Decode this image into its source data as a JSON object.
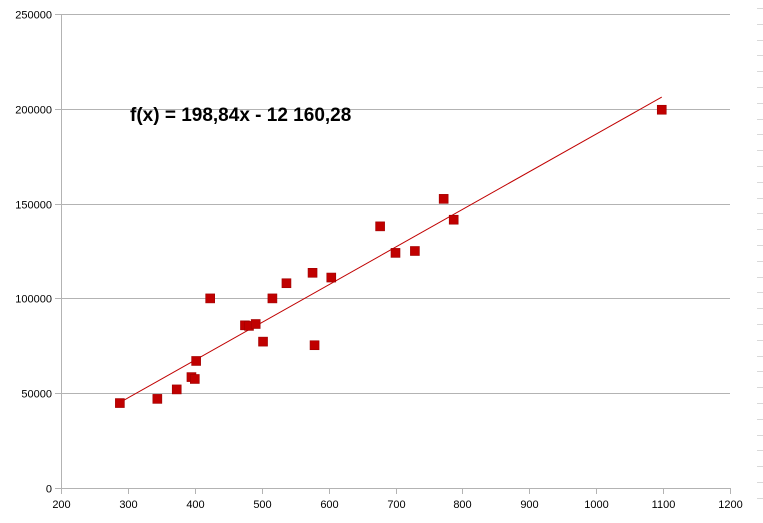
{
  "chart_data": {
    "type": "scatter",
    "title": "",
    "xlabel": "",
    "ylabel": "",
    "xlim": [
      200,
      1200
    ],
    "ylim": [
      0,
      250000
    ],
    "x_ticks": [
      "200",
      "300",
      "400",
      "500",
      "600",
      "700",
      "800",
      "900",
      "1000",
      "1100",
      "1200"
    ],
    "y_ticks": [
      "0",
      "50000",
      "100000",
      "150000",
      "200000",
      "250000"
    ],
    "grid": "horizontal",
    "legend": "none",
    "marker": "square",
    "colors": {
      "points": "#c00000",
      "trendline": "#c00000",
      "grid": "#b3b3b3",
      "axis": "#b3b3b3"
    },
    "points": [
      {
        "x": 288,
        "y": 44800
      },
      {
        "x": 344,
        "y": 47000
      },
      {
        "x": 373,
        "y": 52000
      },
      {
        "x": 395,
        "y": 58500
      },
      {
        "x": 400,
        "y": 57500
      },
      {
        "x": 402,
        "y": 67000
      },
      {
        "x": 423,
        "y": 100000
      },
      {
        "x": 475,
        "y": 85800
      },
      {
        "x": 481,
        "y": 85500
      },
      {
        "x": 491,
        "y": 86500
      },
      {
        "x": 502,
        "y": 77200
      },
      {
        "x": 516,
        "y": 100000
      },
      {
        "x": 537,
        "y": 108000
      },
      {
        "x": 576,
        "y": 113500
      },
      {
        "x": 579,
        "y": 75300
      },
      {
        "x": 604,
        "y": 111000
      },
      {
        "x": 677,
        "y": 138000
      },
      {
        "x": 700,
        "y": 124000
      },
      {
        "x": 729,
        "y": 125000
      },
      {
        "x": 772,
        "y": 152500
      },
      {
        "x": 787,
        "y": 141500
      },
      {
        "x": 1098,
        "y": 199500
      }
    ],
    "trendline": {
      "slope": 198.84,
      "intercept": -12160.28,
      "x_start": 288,
      "x_end": 1098,
      "label": "f(x) = 198,84x - 12 160,28"
    }
  }
}
